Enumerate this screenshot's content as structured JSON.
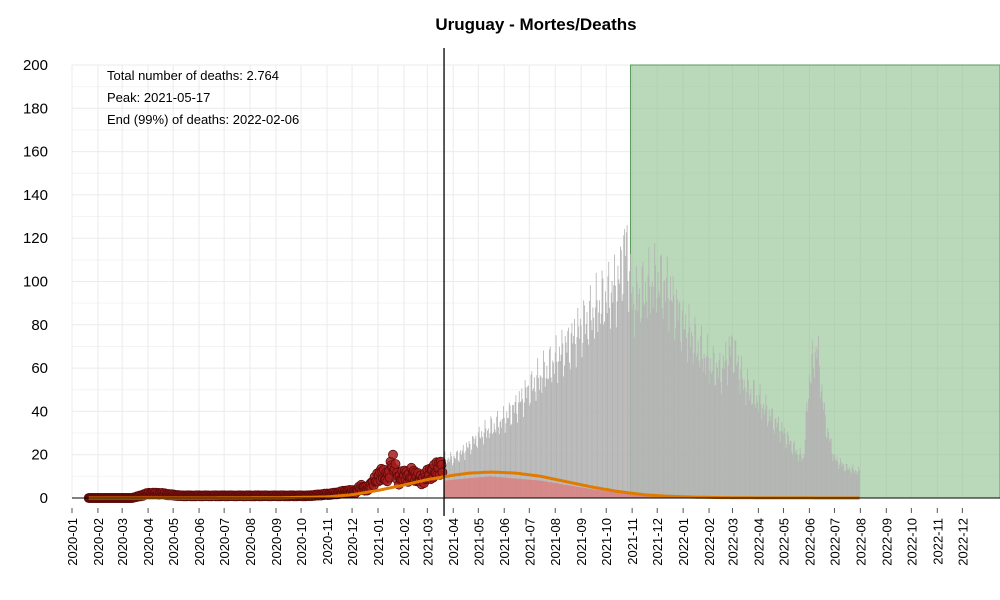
{
  "chart_data": {
    "type": "bar",
    "title": "Uruguay - Mortes/Deaths",
    "xlabel": "",
    "ylabel": "",
    "ylim": [
      0,
      200
    ],
    "yticks": [
      "0",
      "20",
      "40",
      "60",
      "80",
      "100",
      "120",
      "140",
      "160",
      "180",
      "200"
    ],
    "xlim": [
      "2020-01-01",
      "2023-01-15"
    ],
    "xticks": [
      "2020-01",
      "2020-02",
      "2020-03",
      "2020-04",
      "2020-05",
      "2020-06",
      "2020-07",
      "2020-08",
      "2020-09",
      "2020-10",
      "2020-11",
      "2020-12",
      "2021-01",
      "2021-02",
      "2021-03",
      "2021-04",
      "2021-05",
      "2021-06",
      "2021-07",
      "2021-08",
      "2021-09",
      "2021-10",
      "2021-11",
      "2021-12",
      "2022-01",
      "2022-02",
      "2022-03",
      "2022-04",
      "2022-05",
      "2022-06",
      "2022-07",
      "2022-08",
      "2022-09",
      "2022-10",
      "2022-11",
      "2022-12"
    ],
    "grid": true,
    "current_date": "2021-03-21",
    "end_region": {
      "start": "2021-10-30",
      "end": "2023-01-15",
      "value": 200,
      "color": "#8fc18f"
    },
    "annotations": [
      {
        "text": "Total number of deaths: 2.764",
        "color": "#000000"
      },
      {
        "text": "Peak: 2021-05-17",
        "color": "#b2182b"
      },
      {
        "text": "End (99%) of deaths: 2022-02-06",
        "color": "#6aaa64"
      }
    ],
    "observed_series": {
      "name": "",
      "color": "#8b1a1a",
      "dates": [
        "2020-01-21",
        "2020-02-13",
        "2020-03-13",
        "2020-04-01",
        "2020-04-15",
        "2020-05-10",
        "2020-06-10",
        "2020-07-10",
        "2020-08-10",
        "2020-09-10",
        "2020-10-10",
        "2020-11-10",
        "2020-11-25",
        "2020-12-05",
        "2020-12-12",
        "2020-12-19",
        "2020-12-26",
        "2021-01-02",
        "2021-01-06",
        "2021-01-10",
        "2021-01-14",
        "2021-01-18",
        "2021-01-22",
        "2021-01-26",
        "2021-01-30",
        "2021-02-03",
        "2021-02-07",
        "2021-02-11",
        "2021-02-15",
        "2021-02-19",
        "2021-02-23",
        "2021-02-27",
        "2021-03-03",
        "2021-03-07",
        "2021-03-11",
        "2021-03-15",
        "2021-03-19"
      ],
      "values": [
        0,
        0,
        0,
        2,
        2,
        1,
        1,
        1,
        1,
        1,
        1,
        2,
        3,
        3,
        5,
        4,
        7,
        10,
        12,
        9,
        11,
        17,
        13,
        8,
        10,
        11,
        9,
        12,
        10,
        9,
        8,
        10,
        11,
        12,
        13,
        14,
        15
      ]
    },
    "daily_bars": {
      "color": "#b3b3b3",
      "start": "2021-03-21",
      "dates": [
        "2021-04-01",
        "2021-04-15",
        "2021-05-01",
        "2021-05-15",
        "2021-06-01",
        "2021-06-15",
        "2021-07-01",
        "2021-07-15",
        "2021-08-01",
        "2021-08-15",
        "2021-09-01",
        "2021-09-15",
        "2021-10-01",
        "2021-10-15",
        "2021-10-25",
        "2021-11-01",
        "2021-11-15",
        "2021-12-01",
        "2021-12-15",
        "2022-01-01",
        "2022-01-15",
        "2022-02-01",
        "2022-02-15",
        "2022-03-01",
        "2022-03-15",
        "2022-04-01",
        "2022-04-15",
        "2022-05-01",
        "2022-05-15",
        "2022-05-25",
        "2022-06-01",
        "2022-06-10",
        "2022-06-20",
        "2022-07-01",
        "2022-07-15",
        "2022-07-31"
      ],
      "values": [
        18,
        22,
        28,
        32,
        36,
        42,
        50,
        56,
        63,
        70,
        78,
        85,
        92,
        98,
        118,
        90,
        95,
        100,
        95,
        80,
        72,
        62,
        58,
        70,
        52,
        45,
        38,
        30,
        22,
        18,
        55,
        70,
        35,
        18,
        14,
        12
      ]
    },
    "band_series": {
      "name": "",
      "color": "#d98080",
      "dates": [
        "2021-03-21",
        "2021-04-15",
        "2021-05-15",
        "2021-06-15",
        "2021-07-15",
        "2021-08-15",
        "2021-09-15",
        "2021-10-15",
        "2021-11-15",
        "2021-12-15",
        "2022-02-15",
        "2022-07-31"
      ],
      "values": [
        8,
        9,
        10,
        9,
        8,
        6,
        4,
        2.5,
        1.5,
        0.8,
        0.3,
        0.1
      ]
    },
    "fit_series": {
      "name": "",
      "color": "#e07b00",
      "dates": [
        "2020-01-21",
        "2020-06-01",
        "2020-09-01",
        "2020-11-01",
        "2020-12-01",
        "2021-01-01",
        "2021-02-01",
        "2021-03-01",
        "2021-04-01",
        "2021-04-20",
        "2021-05-17",
        "2021-06-15",
        "2021-07-15",
        "2021-08-15",
        "2021-09-15",
        "2021-10-15",
        "2021-11-15",
        "2021-12-15",
        "2022-01-15",
        "2022-02-15",
        "2022-04-01",
        "2022-07-31"
      ],
      "values": [
        0,
        0,
        0.1,
        0.5,
        1.5,
        3.5,
        6,
        8.5,
        10.5,
        11.5,
        12,
        11.5,
        10,
        7.5,
        5,
        3,
        1.5,
        0.8,
        0.4,
        0.2,
        0.05,
        0
      ]
    }
  }
}
